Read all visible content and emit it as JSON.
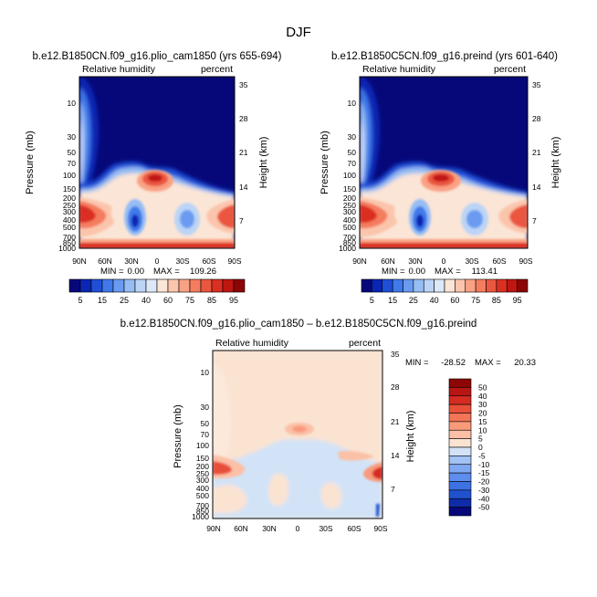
{
  "figure_title": "DJF",
  "colors": {
    "bg": "#ffffff",
    "abs_palette": [
      "#06087a",
      "#0a26b4",
      "#1f4fd6",
      "#3f79ea",
      "#6a9bf0",
      "#96bdf4",
      "#bcd4f6",
      "#dde8f8",
      "#fbe5d6",
      "#fbc5ac",
      "#f9a184",
      "#f47c5f",
      "#eb563f",
      "#db2f22",
      "#c01612",
      "#8c0606"
    ],
    "diff_palette": [
      "#06087a",
      "#0e2ba8",
      "#2251cf",
      "#3d72e4",
      "#5d8ded",
      "#7fa8f2",
      "#a3c2f5",
      "#d2e3f8",
      "#fbe3d2",
      "#fbc0a5",
      "#f99a7b",
      "#f27558",
      "#e8503a",
      "#d42c22",
      "#b71612",
      "#8c0606"
    ]
  },
  "chart_data": [
    {
      "type": "heatmap",
      "title": "b.e12.B1850CN.f09_g16.plio_cam1850 (yrs 655-694)",
      "variable": "Relative humidity",
      "units": "percent",
      "ylabel": "Pressure (mb)",
      "ylabel_right": "Height (km)",
      "x_ticks": [
        "90N",
        "60N",
        "30N",
        "0",
        "30S",
        "60S",
        "90S"
      ],
      "y_ticks": [
        "10",
        "30",
        "50",
        "70",
        "100",
        "150",
        "200",
        "250",
        "300",
        "400",
        "500",
        "700",
        "850",
        "1000"
      ],
      "y_ticks_right": [
        "35",
        "28",
        "21",
        "14",
        "7"
      ],
      "min_label": "MIN =",
      "min_value": "0.00",
      "max_label": "MAX =",
      "max_value": "109.26",
      "colorbar_labels": [
        "5",
        "15",
        "25",
        "40",
        "60",
        "75",
        "85",
        "95"
      ]
    },
    {
      "type": "heatmap",
      "title": "b.e12.B1850C5CN.f09_g16.preind (yrs 601-640)",
      "variable": "Relative humidity",
      "units": "percent",
      "ylabel": "Pressure (mb)",
      "ylabel_right": "Height (km)",
      "x_ticks": [
        "90N",
        "60N",
        "30N",
        "0",
        "30S",
        "60S",
        "90S"
      ],
      "y_ticks": [
        "10",
        "30",
        "50",
        "70",
        "100",
        "150",
        "200",
        "250",
        "300",
        "400",
        "500",
        "700",
        "850",
        "1000"
      ],
      "y_ticks_right": [
        "35",
        "28",
        "21",
        "14",
        "7"
      ],
      "min_label": "MIN =",
      "min_value": "0.00",
      "max_label": "MAX =",
      "max_value": "113.41",
      "colorbar_labels": [
        "5",
        "15",
        "25",
        "40",
        "60",
        "75",
        "85",
        "95"
      ]
    },
    {
      "type": "heatmap",
      "title": "b.e12.B1850CN.f09_g16.plio_cam1850 – b.e12.B1850C5CN.f09_g16.preind",
      "variable": "Relative humidity",
      "units": "percent",
      "ylabel": "Pressure (mb)",
      "ylabel_right": "Height (km)",
      "x_ticks": [
        "90N",
        "60N",
        "30N",
        "0",
        "30S",
        "60S",
        "90S"
      ],
      "y_ticks": [
        "10",
        "30",
        "50",
        "70",
        "100",
        "150",
        "200",
        "250",
        "300",
        "400",
        "500",
        "700",
        "850",
        "1000"
      ],
      "y_ticks_right": [
        "35",
        "28",
        "21",
        "14",
        "7"
      ],
      "min_label": "MIN =",
      "min_value": "-28.52",
      "max_label": "MAX =",
      "max_value": "20.33",
      "colorbar_labels": [
        "50",
        "40",
        "30",
        "20",
        "15",
        "10",
        "5",
        "0",
        "-5",
        "-10",
        "-15",
        "-20",
        "-30",
        "-40",
        "-50"
      ]
    }
  ]
}
